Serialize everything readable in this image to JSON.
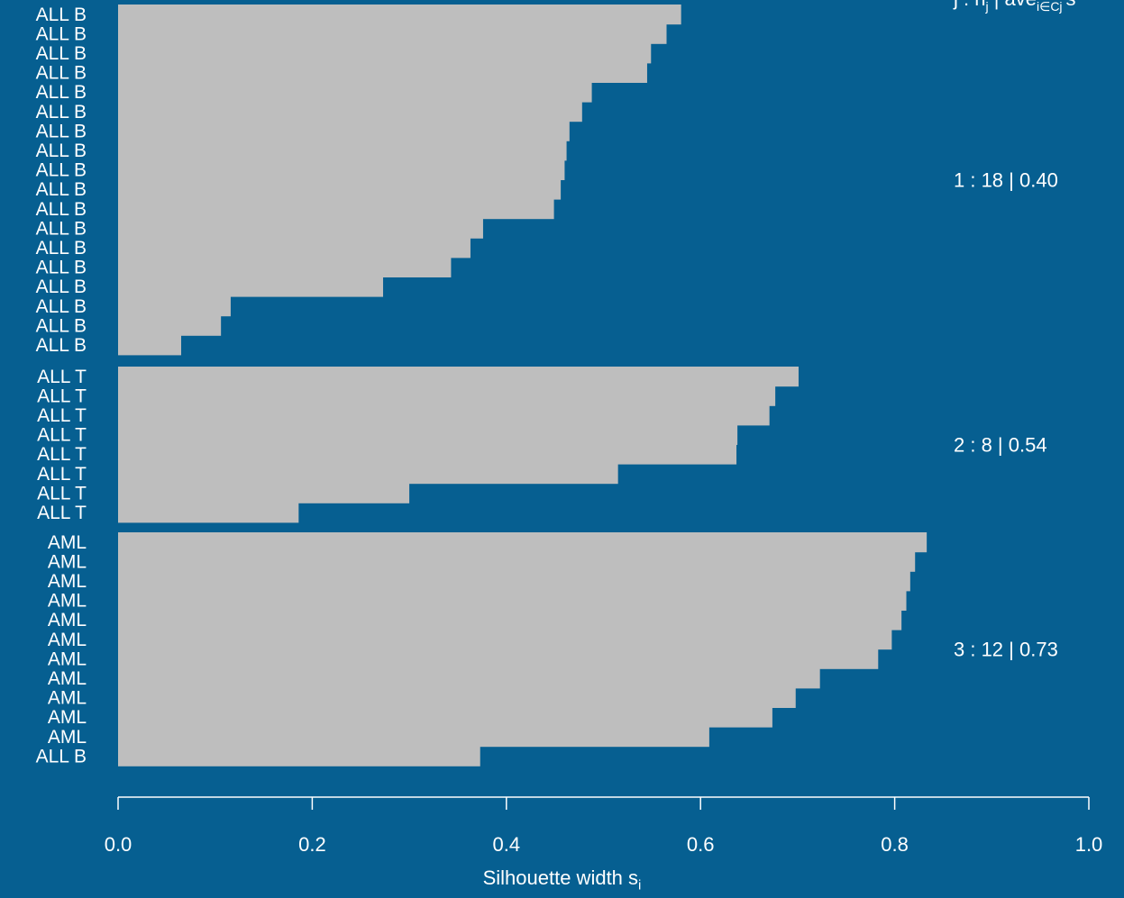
{
  "chart_data": {
    "type": "bar",
    "orientation": "horizontal",
    "xlim": [
      0,
      1
    ],
    "x_ticks": [
      "0.0",
      "0.2",
      "0.4",
      "0.6",
      "0.8",
      "1.0"
    ],
    "xlabel": "Silhouette width",
    "xlabel_subscript": "i",
    "header": "j : n | ave s",
    "header_parts": {
      "main": "j : n",
      "sub_j": "j",
      "avg": " | ave",
      "sub_i": "i∈Cj",
      "tail": "s"
    },
    "bar_color": "#bebebe",
    "background": "#065f91",
    "clusters": [
      {
        "summary": "1 :  18  |  0.40",
        "labels": [
          "ALL B",
          "ALL B",
          "ALL B",
          "ALL B",
          "ALL B",
          "ALL B",
          "ALL B",
          "ALL B",
          "ALL B",
          "ALL B",
          "ALL B",
          "ALL B",
          "ALL B",
          "ALL B",
          "ALL B",
          "ALL B",
          "ALL B",
          "ALL B"
        ],
        "values": [
          0.58,
          0.565,
          0.549,
          0.545,
          0.488,
          0.478,
          0.465,
          0.462,
          0.46,
          0.456,
          0.449,
          0.376,
          0.363,
          0.343,
          0.273,
          0.116,
          0.106,
          0.065
        ]
      },
      {
        "summary": "2 :   8  |  0.54",
        "labels": [
          "ALL T",
          "ALL T",
          "ALL T",
          "ALL T",
          "ALL T",
          "ALL T",
          "ALL T",
          "ALL T"
        ],
        "values": [
          0.701,
          0.677,
          0.671,
          0.638,
          0.637,
          0.515,
          0.3,
          0.186
        ]
      },
      {
        "summary": "3 :  12  |  0.73",
        "labels": [
          "AML",
          "AML",
          "AML",
          "AML",
          "AML",
          "AML",
          "AML",
          "AML",
          "AML",
          "AML",
          "AML",
          "ALL B"
        ],
        "values": [
          0.833,
          0.821,
          0.816,
          0.812,
          0.807,
          0.797,
          0.783,
          0.723,
          0.698,
          0.674,
          0.609,
          0.373
        ]
      }
    ]
  }
}
